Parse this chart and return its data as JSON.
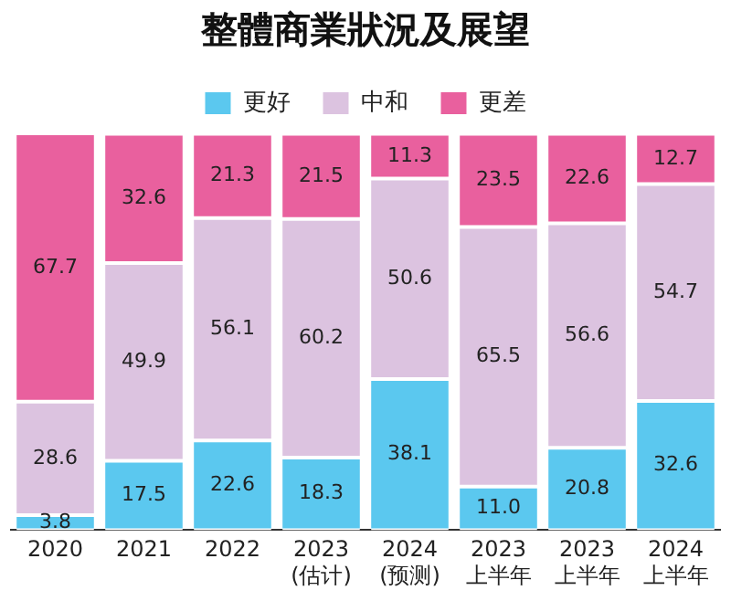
{
  "chart_data": {
    "type": "bar",
    "stacked": true,
    "title": "整體商業狀況及展望",
    "legend": "top",
    "grid": false,
    "tick_labels": "x",
    "categories": [
      "2020",
      "2021",
      "2022",
      "2023\n(估计)",
      "2024\n(预测)",
      "2023\n上半年",
      "2023\n上半年",
      "2024\n上半年"
    ],
    "series": [
      {
        "name": "更好",
        "color": "#5bc8ef",
        "values": [
          3.8,
          17.5,
          22.6,
          18.3,
          38.1,
          11.0,
          20.8,
          32.6
        ],
        "value_labels": [
          "3.8",
          "17.5",
          "22.6",
          "18.3",
          "38.1",
          "11.0",
          "20.8",
          "32.6"
        ]
      },
      {
        "name": "中和",
        "color": "#dcc3e0",
        "values": [
          28.6,
          49.9,
          56.1,
          60.2,
          50.6,
          65.5,
          56.6,
          54.7
        ],
        "value_labels": [
          "28.6",
          "49.9",
          "56.1",
          "60.2",
          "50.6",
          "65.5",
          "56.6",
          "54.7"
        ]
      },
      {
        "name": "更差",
        "color": "#e9609e",
        "values": [
          67.7,
          32.6,
          21.3,
          21.5,
          11.3,
          23.5,
          22.6,
          12.7
        ],
        "value_labels": [
          "67.7",
          "32.6",
          "21.3",
          "21.5",
          "11.3",
          "23.5",
          "22.6",
          "12.7"
        ]
      }
    ]
  }
}
